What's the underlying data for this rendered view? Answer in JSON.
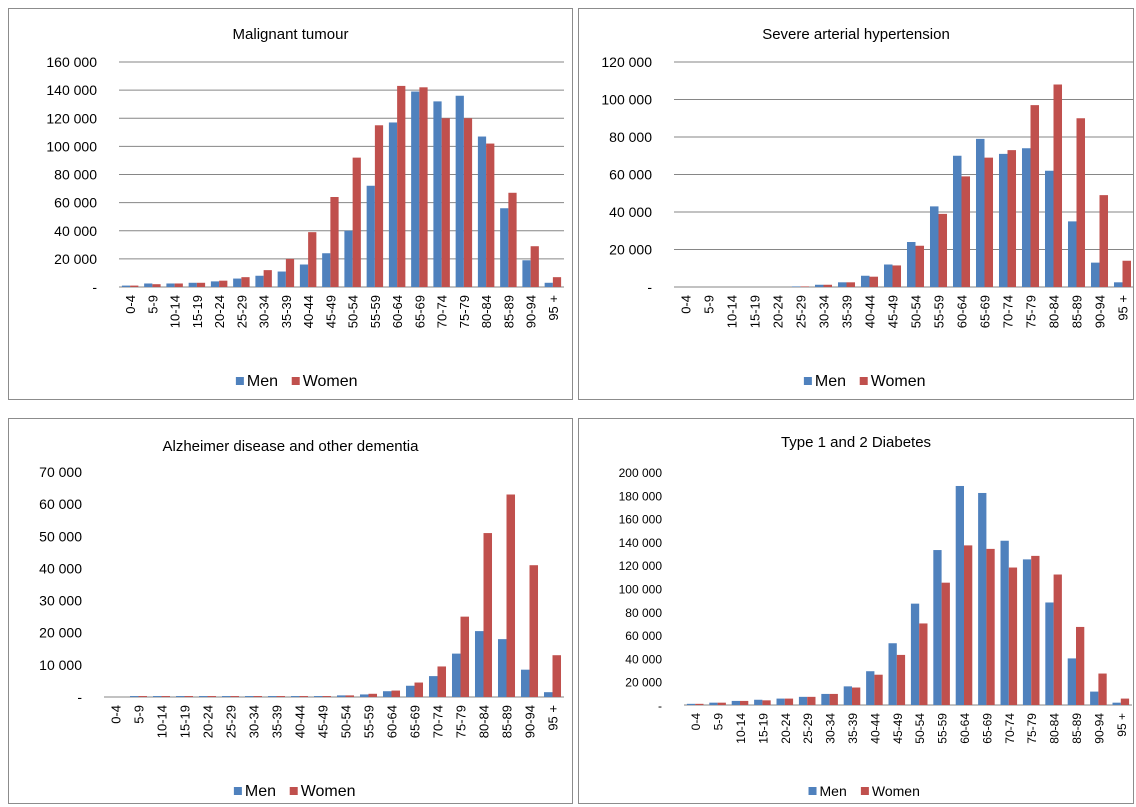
{
  "colors": {
    "men": "#4f81bd",
    "women": "#c0504d",
    "grid": "#868686",
    "axis": "#868686"
  },
  "chart_data": [
    {
      "type": "bar",
      "title": "Malignant tumour",
      "categories": [
        "0-4",
        "5-9",
        "10-14",
        "15-19",
        "20-24",
        "25-29",
        "30-34",
        "35-39",
        "40-44",
        "45-49",
        "50-54",
        "55-59",
        "60-64",
        "65-69",
        "70-74",
        "75-79",
        "80-84",
        "85-89",
        "90-94",
        "95 +"
      ],
      "series": [
        {
          "name": "Men",
          "values": [
            1000,
            2500,
            2500,
            3000,
            4000,
            6000,
            8000,
            11000,
            16000,
            24000,
            40000,
            72000,
            117000,
            139000,
            132000,
            136000,
            107000,
            56000,
            19000,
            3000
          ]
        },
        {
          "name": "Women",
          "values": [
            1000,
            2000,
            2500,
            3000,
            4500,
            7000,
            12000,
            20000,
            39000,
            64000,
            92000,
            115000,
            143000,
            142000,
            120000,
            120000,
            102000,
            67000,
            29000,
            7000
          ]
        }
      ],
      "yticks": [
        "-",
        "20 000",
        "40 000",
        "60 000",
        "80 000",
        "100 000",
        "120 000",
        "140 000",
        "160 000"
      ],
      "ylim": [
        0,
        160000
      ],
      "legend": "bottom",
      "grid": true
    },
    {
      "type": "bar",
      "title": "Severe arterial hypertension",
      "categories": [
        "0-4",
        "5-9",
        "10-14",
        "15-19",
        "20-24",
        "25-29",
        "30-34",
        "35-39",
        "40-44",
        "45-49",
        "50-54",
        "55-59",
        "60-64",
        "65-69",
        "70-74",
        "75-79",
        "80-84",
        "85-89",
        "90-94",
        "95 +"
      ],
      "series": [
        {
          "name": "Men",
          "values": [
            0,
            0,
            0,
            0,
            0,
            300,
            1200,
            2500,
            6000,
            12000,
            24000,
            43000,
            70000,
            79000,
            71000,
            74000,
            62000,
            35000,
            13000,
            2500
          ]
        },
        {
          "name": "Women",
          "values": [
            0,
            0,
            0,
            0,
            0,
            300,
            1200,
            2500,
            5500,
            11500,
            22000,
            39000,
            59000,
            69000,
            73000,
            97000,
            108000,
            90000,
            49000,
            14000
          ]
        }
      ],
      "yticks": [
        "-",
        "20 000",
        "40 000",
        "60 000",
        "80 000",
        "100 000",
        "120 000"
      ],
      "ylim": [
        0,
        120000
      ],
      "legend": "bottom",
      "grid": true
    },
    {
      "type": "bar",
      "title": "Alzheimer  disease and other dementia",
      "categories": [
        "0-4",
        "5-9",
        "10-14",
        "15-19",
        "20-24",
        "25-29",
        "30-34",
        "35-39",
        "40-44",
        "45-49",
        "50-54",
        "55-59",
        "60-64",
        "65-69",
        "70-74",
        "75-79",
        "80-84",
        "85-89",
        "90-94",
        "95 +"
      ],
      "series": [
        {
          "name": "Men",
          "values": [
            0,
            300,
            300,
            300,
            300,
            300,
            300,
            300,
            300,
            300,
            500,
            800,
            1800,
            3500,
            6500,
            13500,
            20500,
            18000,
            8500,
            1500
          ]
        },
        {
          "name": "Women",
          "values": [
            0,
            300,
            300,
            300,
            300,
            300,
            300,
            300,
            300,
            300,
            500,
            1000,
            2000,
            4500,
            9500,
            25000,
            51000,
            63000,
            41000,
            13000
          ]
        }
      ],
      "yticks": [
        "-",
        "10 000",
        "20 000",
        "30 000",
        "40 000",
        "50 000",
        "60 000",
        "70 000"
      ],
      "ylim": [
        0,
        70000
      ],
      "legend": "bottom",
      "grid": false
    },
    {
      "type": "bar",
      "title": "Type 1 and 2 Diabetes",
      "categories": [
        "0-4",
        "5-9",
        "10-14",
        "15-19",
        "20-24",
        "25-29",
        "30-34",
        "35-39",
        "40-44",
        "45-49",
        "50-54",
        "55-59",
        "60-64",
        "65-69",
        "70-74",
        "75-79",
        "80-84",
        "85-89",
        "90-94",
        "95 +"
      ],
      "series": [
        {
          "name": "Men",
          "values": [
            1000,
            2000,
            3500,
            4500,
            5500,
            7000,
            9500,
            16000,
            29000,
            53000,
            87000,
            133000,
            188000,
            182000,
            141000,
            125000,
            88000,
            40000,
            11500,
            2000
          ]
        },
        {
          "name": "Women",
          "values": [
            1000,
            2000,
            3500,
            4000,
            5500,
            7000,
            9500,
            15000,
            26000,
            43000,
            70000,
            105000,
            137000,
            134000,
            118000,
            128000,
            112000,
            67000,
            27000,
            5500
          ]
        }
      ],
      "yticks": [
        "-",
        "20 000",
        "40 000",
        "60 000",
        "80 000",
        "100 000",
        "120 000",
        "140 000",
        "160 000",
        "180 000",
        "200 000"
      ],
      "ylim": [
        0,
        200000
      ],
      "legend": "bottom",
      "grid": false
    }
  ]
}
